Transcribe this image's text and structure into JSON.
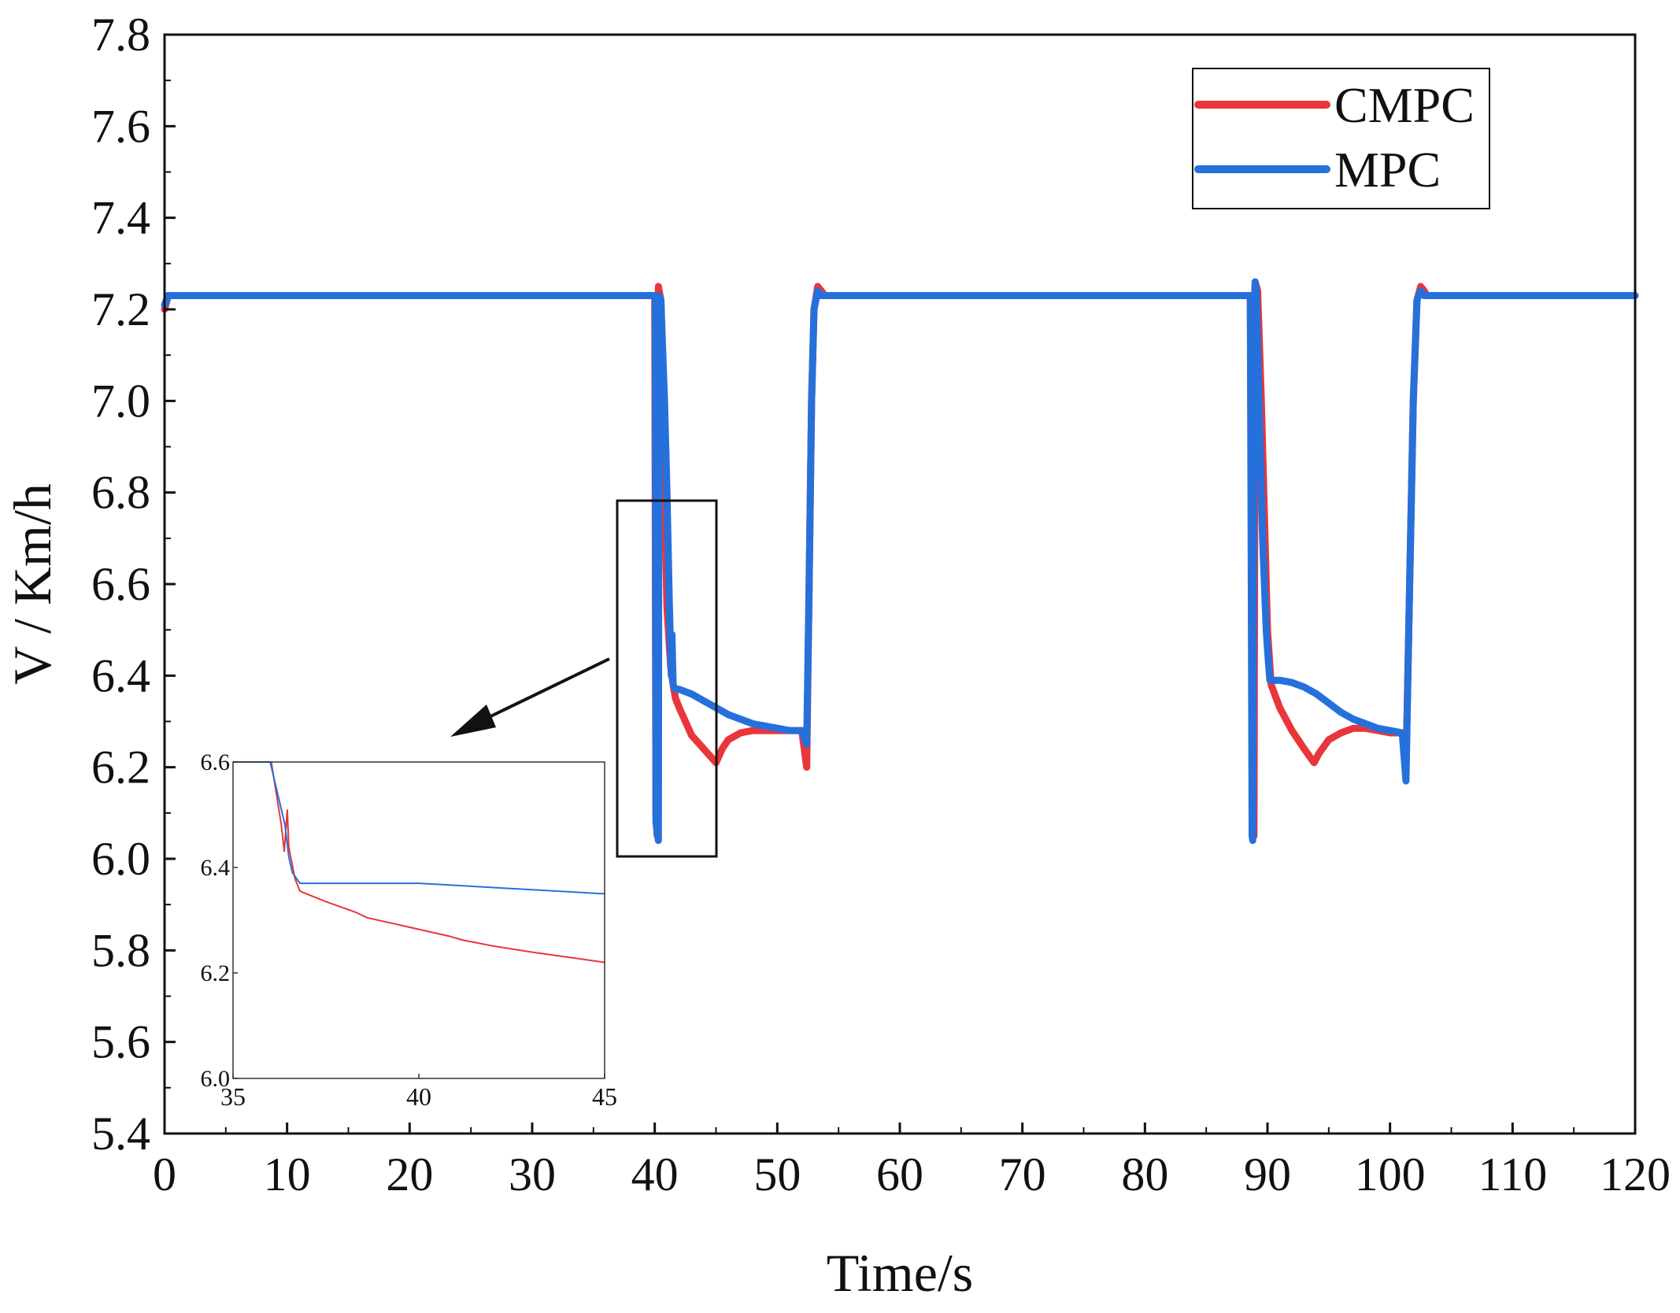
{
  "chart_data": {
    "type": "line",
    "title": "",
    "xlabel": "Time/s",
    "ylabel": "V / Km/h",
    "xlim": [
      0,
      120
    ],
    "ylim": [
      5.4,
      7.8
    ],
    "xticks": [
      0,
      10,
      20,
      30,
      40,
      50,
      60,
      70,
      80,
      90,
      100,
      110,
      120
    ],
    "yticks": [
      "5.4",
      "5.6",
      "5.8",
      "6.0",
      "6.2",
      "6.4",
      "6.6",
      "6.8",
      "7.0",
      "7.2",
      "7.4",
      "7.6",
      "7.8"
    ],
    "grid": false,
    "legend_position": "top-right",
    "colors": {
      "CMPC": "#e8363a",
      "MPC": "#2670dc"
    },
    "series": [
      {
        "name": "CMPC",
        "x": [
          0,
          0.3,
          40,
          40.1,
          40.2,
          40.3,
          40.5,
          40.7,
          41.0,
          41.3,
          41.5,
          41.7,
          42.0,
          42.5,
          43.0,
          44.0,
          45.0,
          45.5,
          46.0,
          47.0,
          48.0,
          49.0,
          50.0,
          51.0,
          52.0,
          52.4,
          52.6,
          52.8,
          53.0,
          53.3,
          53.6,
          53.9,
          54.2,
          54.6,
          55,
          60,
          70,
          80,
          88.6,
          88.8,
          88.9,
          89.0,
          89.2,
          89.5,
          89.8,
          90.0,
          90.3,
          91.0,
          92.0,
          93.0,
          93.8,
          94.2,
          95.0,
          96.0,
          97.0,
          98.0,
          99.0,
          100.0,
          101.0,
          101.3,
          101.6,
          101.9,
          102.2,
          102.5,
          102.8,
          103.0,
          103.4,
          105,
          110,
          120
        ],
        "values": [
          7.2,
          7.23,
          7.23,
          6.1,
          6.05,
          7.25,
          7.22,
          6.9,
          6.55,
          6.42,
          6.38,
          6.35,
          6.33,
          6.3,
          6.27,
          6.24,
          6.21,
          6.24,
          6.26,
          6.275,
          6.28,
          6.28,
          6.28,
          6.28,
          6.28,
          6.2,
          6.6,
          7.0,
          7.2,
          7.25,
          7.24,
          7.23,
          7.23,
          7.23,
          7.23,
          7.23,
          7.23,
          7.23,
          7.23,
          6.1,
          6.05,
          7.26,
          7.24,
          7.0,
          6.7,
          6.5,
          6.38,
          6.33,
          6.28,
          6.24,
          6.21,
          6.23,
          6.26,
          6.275,
          6.285,
          6.285,
          6.28,
          6.275,
          6.275,
          6.2,
          6.6,
          7.0,
          7.22,
          7.25,
          7.24,
          7.23,
          7.23,
          7.23,
          7.23,
          7.23
        ]
      },
      {
        "name": "MPC",
        "x": [
          0,
          0.3,
          40,
          40.05,
          40.1,
          40.3,
          40.35,
          40.5,
          40.8,
          41.0,
          41.2,
          41.35,
          41.4,
          41.5,
          41.7,
          42.0,
          43.0,
          44.0,
          45.0,
          46.0,
          47.0,
          48.0,
          49.0,
          50.0,
          51.0,
          52.0,
          52.4,
          52.6,
          52.8,
          53.0,
          53.3,
          53.6,
          54.0,
          54.5,
          55,
          60,
          70,
          80,
          88.6,
          88.75,
          88.8,
          88.9,
          89.0,
          89.1,
          89.3,
          89.6,
          89.9,
          90.1,
          90.2,
          90.4,
          91,
          92,
          93,
          94,
          95,
          96,
          97,
          98,
          99,
          100,
          101.0,
          101.3,
          101.6,
          101.9,
          102.2,
          102.5,
          102.8,
          103.3,
          105,
          110,
          120
        ],
        "values": [
          7.21,
          7.23,
          7.23,
          7.22,
          6.08,
          6.04,
          7.23,
          7.22,
          7.0,
          6.8,
          6.55,
          6.4,
          6.49,
          6.38,
          6.37,
          6.37,
          6.36,
          6.345,
          6.33,
          6.315,
          6.305,
          6.295,
          6.29,
          6.285,
          6.28,
          6.28,
          6.25,
          6.6,
          7.0,
          7.2,
          7.24,
          7.23,
          7.23,
          7.23,
          7.23,
          7.23,
          7.23,
          7.23,
          7.23,
          6.05,
          6.04,
          7.2,
          7.26,
          7.23,
          7.0,
          6.7,
          6.5,
          6.42,
          6.39,
          6.39,
          6.39,
          6.385,
          6.375,
          6.36,
          6.34,
          6.32,
          6.305,
          6.295,
          6.285,
          6.28,
          6.275,
          6.17,
          6.6,
          7.0,
          7.22,
          7.24,
          7.23,
          7.23,
          7.23,
          7.23,
          7.23
        ]
      }
    ],
    "inset": {
      "xlim": [
        35,
        45
      ],
      "ylim": [
        6.0,
        6.6
      ],
      "xticks": [
        "35",
        "40",
        "45"
      ],
      "yticks": [
        "6.0",
        "6.2",
        "6.4",
        "6.6"
      ],
      "series": [
        {
          "name": "CMPC",
          "x": [
            36.03,
            36.3,
            36.38,
            36.46,
            36.5,
            36.55,
            36.61,
            36.66,
            36.8,
            37.5,
            38.3,
            38.6,
            40.8,
            41.2,
            41.5,
            42.0,
            43.0,
            44.0,
            45.0
          ],
          "values": [
            6.6,
            6.48,
            6.43,
            6.51,
            6.44,
            6.42,
            6.4,
            6.38,
            6.355,
            6.335,
            6.315,
            6.305,
            6.27,
            6.262,
            6.258,
            6.251,
            6.24,
            6.23,
            6.22
          ]
        },
        {
          "name": "MPC",
          "x": [
            35,
            35.3,
            35.9,
            36.0,
            36.4,
            36.5,
            36.6,
            36.8,
            37.0,
            40.0,
            41.0,
            42.0,
            43.0,
            44.0,
            45.0
          ],
          "values": [
            6.6,
            6.6,
            6.6,
            6.6,
            6.48,
            6.42,
            6.39,
            6.37,
            6.37,
            6.37,
            6.366,
            6.362,
            6.358,
            6.354,
            6.35
          ]
        }
      ]
    },
    "legend": [
      {
        "label": "CMPC",
        "color": "#e8363a"
      },
      {
        "label": "MPC",
        "color": "#2670dc"
      }
    ]
  }
}
